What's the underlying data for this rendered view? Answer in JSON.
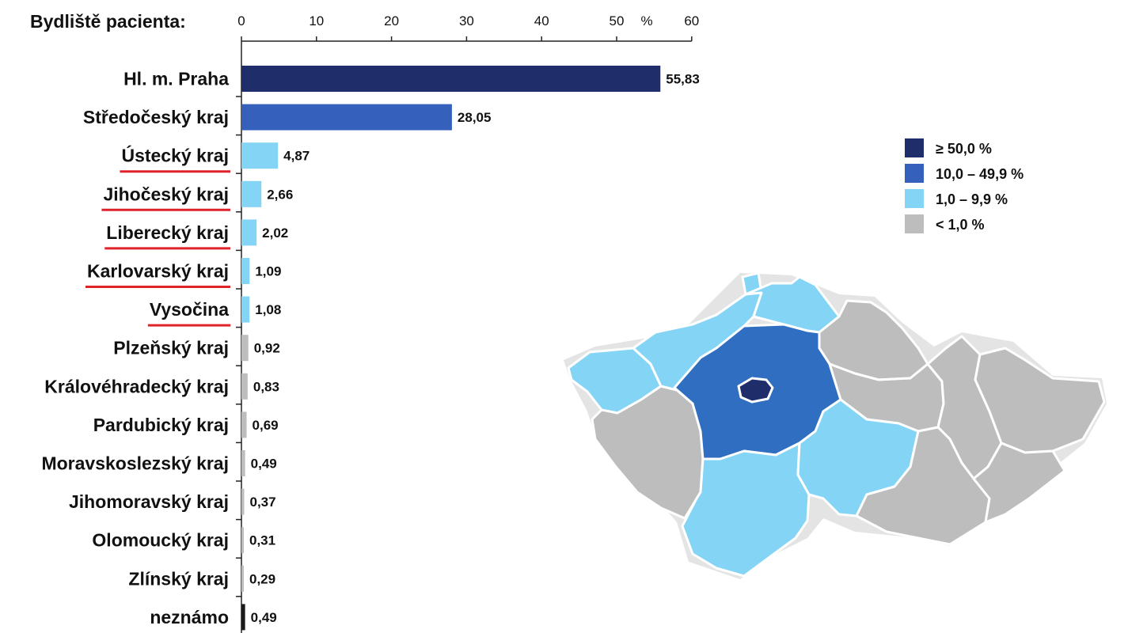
{
  "chart_data": {
    "type": "bar",
    "orientation": "horizontal",
    "title": "Bydliště pacienta:",
    "xlabel": "%",
    "xlim": [
      0,
      60
    ],
    "xticks": [
      "0",
      "10",
      "20",
      "30",
      "40",
      "50",
      "60"
    ],
    "categories": [
      "Hl. m. Praha",
      "Středočeský kraj",
      "Ústecký kraj",
      "Jihočeský kraj",
      "Liberecký kraj",
      "Karlovarský kraj",
      "Vysočina",
      "Plzeňský kraj",
      "Královéhradecký kraj",
      "Pardubický kraj",
      "Moravskoslezský kraj",
      "Jihomoravský kraj",
      "Olomoucký kraj",
      "Zlínský kraj",
      "neznámo"
    ],
    "values": [
      55.83,
      28.05,
      4.87,
      2.66,
      2.02,
      1.09,
      1.08,
      0.92,
      0.83,
      0.69,
      0.49,
      0.37,
      0.31,
      0.29,
      0.49
    ],
    "value_labels": [
      "55,83",
      "28,05",
      "4,87",
      "2,66",
      "2,02",
      "1,09",
      "1,08",
      "0,92",
      "0,83",
      "0,69",
      "0,49",
      "0,37",
      "0,31",
      "0,29",
      "0,49"
    ],
    "underlined_categories": [
      "Ústecký kraj",
      "Jihočeský kraj",
      "Liberecký kraj",
      "Karlovarský kraj",
      "Vysočina"
    ],
    "underline_color": "#e0232b",
    "unknown_color": "#1a1a1a",
    "legend": [
      {
        "label": "≥ 50,0 %",
        "color": "#1f2d6b",
        "min": 50
      },
      {
        "label": "10,0 – 49,9 %",
        "color": "#3561bd",
        "min": 10
      },
      {
        "label": "1,0 – 9,9 %",
        "color": "#84d4f6",
        "min": 1
      },
      {
        "label": "< 1,0 %",
        "color": "#bdbdbd",
        "min": 0
      }
    ],
    "map": {
      "region_colors": {
        "Hl. m. Praha": "#1f2d6b",
        "Středočeský kraj": "#2f6ec0",
        "Ústecký kraj": "#84d4f6",
        "Jihočeský kraj": "#84d4f6",
        "Liberecký kraj": "#84d4f6",
        "Karlovarský kraj": "#84d4f6",
        "Vysočina": "#84d4f6",
        "Plzeňský kraj": "#bdbdbd",
        "Královéhradecký kraj": "#bdbdbd",
        "Pardubický kraj": "#bdbdbd",
        "Moravskoslezský kraj": "#bdbdbd",
        "Jihomoravský kraj": "#bdbdbd",
        "Olomoucký kraj": "#bdbdbd",
        "Zlínský kraj": "#bdbdbd"
      }
    }
  }
}
